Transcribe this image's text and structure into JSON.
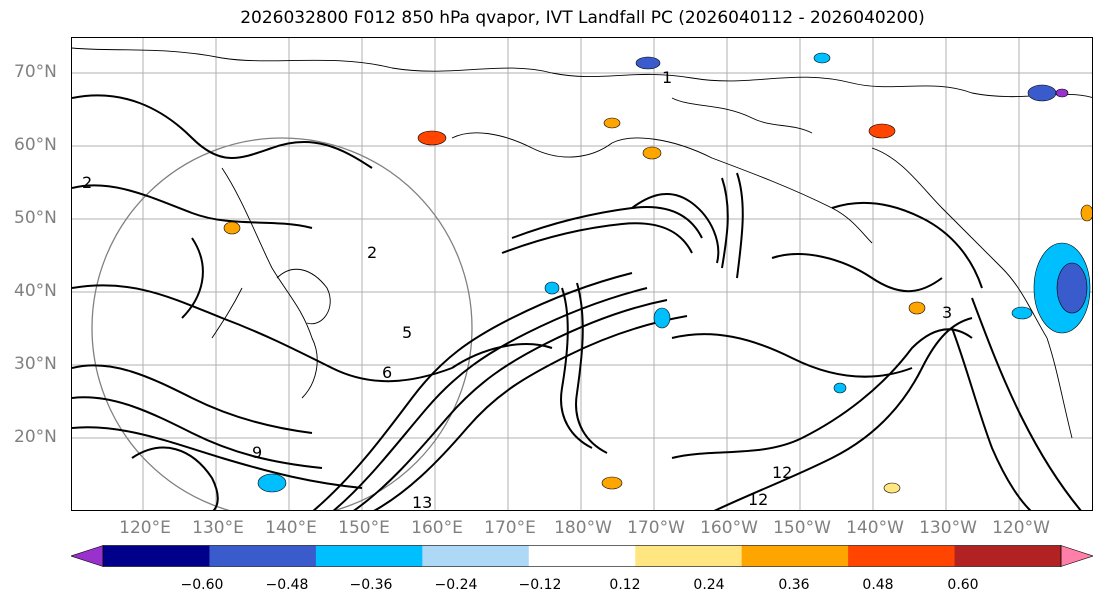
{
  "title": "2026032800 F012 850 hPa qvapor, IVT Landfall PC (2026040112 - 2026040200)",
  "lat_labels": [
    "70°N",
    "60°N",
    "50°N",
    "40°N",
    "30°N",
    "20°N"
  ],
  "lon_labels": [
    "120°E",
    "130°E",
    "140°E",
    "150°E",
    "160°E",
    "170°E",
    "180°W",
    "170°W",
    "160°W",
    "150°W",
    "140°W",
    "130°W",
    "120°W"
  ],
  "contour_labels": [
    "1",
    "2",
    "2",
    "3",
    "5",
    "6",
    "9",
    "12",
    "13",
    "12"
  ],
  "colorbar": {
    "ticks": [
      "−0.60",
      "−0.48",
      "−0.36",
      "−0.24",
      "−0.12",
      "0.12",
      "0.24",
      "0.36",
      "0.48",
      "0.60"
    ],
    "colors": [
      "#9932cc",
      "#00008b",
      "#3a5bcc",
      "#00bfff",
      "#add8f6",
      "#ffffff",
      "#ffe680",
      "#ffa500",
      "#ff4500",
      "#b22222",
      "#ff7fa8"
    ]
  }
}
